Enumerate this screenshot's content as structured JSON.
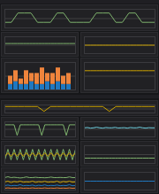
{
  "chart_data": [
    {
      "type": "line",
      "x": [
        0,
        1,
        2,
        3,
        4,
        5,
        6,
        7,
        8,
        9,
        10,
        11,
        12,
        13,
        14,
        15,
        16,
        17,
        18,
        19,
        20,
        21,
        22,
        23
      ],
      "xlim": [
        0,
        23
      ],
      "ylim": [
        0,
        1
      ],
      "yticks": [
        0,
        0.5,
        1
      ],
      "grid": true,
      "tick_labels": false,
      "series": [
        {
          "color": "#7eb26d",
          "values": [
            0.3,
            0.3,
            0.8,
            0.8,
            0.8,
            0.3,
            0.3,
            0.3,
            0.8,
            0.8,
            0.3,
            0.3,
            0.3,
            0.3,
            0.8,
            0.8,
            0.8,
            0.3,
            0.3,
            0.8,
            0.8,
            0.3,
            0.3,
            0.3
          ]
        }
      ]
    },
    {
      "type": "line",
      "x": [
        0,
        1,
        2,
        3,
        4,
        5,
        6,
        7,
        8,
        9,
        10,
        11,
        12,
        13,
        14,
        15,
        16,
        17,
        18,
        19,
        20,
        21,
        22,
        23
      ],
      "xlim": [
        0,
        23
      ],
      "ylim": [
        0,
        1
      ],
      "yticks": [
        0,
        0.5,
        1
      ],
      "grid": true,
      "tick_labels": false,
      "series": [
        {
          "color": "#7eb26d",
          "values": [
            0.6,
            0.6,
            0.6,
            0.6,
            0.6,
            0.6,
            0.6,
            0.6,
            0.6,
            0.6,
            0.6,
            0.6,
            0.6,
            0.6,
            0.6,
            0.6,
            0.6,
            0.6,
            0.6,
            0.6,
            0.6,
            0.6,
            0.6,
            0.6
          ]
        }
      ]
    },
    {
      "type": "line",
      "x": [
        0,
        1,
        2,
        3,
        4,
        5,
        6,
        7,
        8,
        9,
        10,
        11,
        12,
        13,
        14,
        15,
        16,
        17,
        18,
        19,
        20,
        21,
        22,
        23
      ],
      "xlim": [
        0,
        23
      ],
      "ylim": [
        0,
        1
      ],
      "yticks": [
        0,
        0.5,
        1
      ],
      "grid": true,
      "tick_labels": false,
      "series": [
        {
          "color": "#cca300",
          "values": [
            0.5,
            0.5,
            0.5,
            0.5,
            0.5,
            0.5,
            0.5,
            0.5,
            0.5,
            0.5,
            0.5,
            0.5,
            0.5,
            0.5,
            0.5,
            0.5,
            0.5,
            0.5,
            0.5,
            0.5,
            0.5,
            0.5,
            0.5,
            0.5
          ]
        }
      ]
    },
    {
      "type": "bar",
      "stacked": true,
      "categories": [
        null,
        null,
        null,
        null,
        null,
        null,
        null,
        null,
        null,
        null,
        null,
        null
      ],
      "ylim": [
        0,
        10
      ],
      "yticks": [
        0,
        5,
        10
      ],
      "grid": true,
      "tick_labels": false,
      "series": [
        {
          "color": "#1f78c1",
          "values": [
            2,
            3,
            2,
            2,
            3,
            2,
            2,
            3,
            2,
            3,
            2,
            2
          ]
        },
        {
          "color": "#ef843c",
          "values": [
            3,
            4,
            2,
            5,
            3,
            4,
            6,
            3,
            4,
            5,
            3,
            4
          ]
        }
      ]
    },
    {
      "type": "line",
      "x": [
        0,
        1,
        2,
        3,
        4,
        5,
        6,
        7,
        8,
        9,
        10,
        11,
        12,
        13,
        14,
        15,
        16,
        17,
        18,
        19,
        20,
        21,
        22,
        23
      ],
      "xlim": [
        0,
        23
      ],
      "ylim": [
        0,
        1
      ],
      "yticks": [
        0,
        0.5,
        1
      ],
      "grid": true,
      "tick_labels": false,
      "series": [
        {
          "color": "#cca300",
          "values": [
            0.7,
            0.7,
            0.7,
            0.7,
            0.7,
            0.7,
            0.7,
            0.7,
            0.7,
            0.7,
            0.7,
            0.7,
            0.7,
            0.7,
            0.7,
            0.7,
            0.7,
            0.7,
            0.7,
            0.7,
            0.7,
            0.7,
            0.7,
            0.7
          ]
        }
      ]
    },
    {
      "type": "line",
      "x": [
        0,
        1,
        2,
        3,
        4,
        5,
        6,
        7,
        8,
        9,
        10,
        11,
        12,
        13,
        14,
        15,
        16,
        17,
        18,
        19,
        20,
        21,
        22,
        23
      ],
      "xlim": [
        0,
        23
      ],
      "ylim": [
        0,
        1
      ],
      "yticks": [
        0,
        0.5,
        1
      ],
      "grid": true,
      "tick_labels": false,
      "series": [
        {
          "color": "#cca300",
          "values": [
            0.8,
            0.8,
            0.8,
            0.8,
            0.8,
            0.8,
            0.2,
            0.8,
            0.8,
            0.8,
            0.8,
            0.8,
            0.8,
            0.8,
            0.8,
            0.8,
            0.2,
            0.8,
            0.8,
            0.8,
            0.8,
            0.8,
            0.8,
            0.8
          ]
        }
      ]
    },
    {
      "type": "line",
      "x": [
        0,
        1,
        2,
        3,
        4,
        5,
        6,
        7,
        8,
        9,
        10,
        11,
        12,
        13,
        14,
        15,
        16,
        17,
        18,
        19,
        20,
        21,
        22,
        23
      ],
      "xlim": [
        0,
        23
      ],
      "ylim": [
        0,
        1
      ],
      "yticks": [
        0,
        0.5,
        1
      ],
      "grid": true,
      "tick_labels": false,
      "series": [
        {
          "color": "#7eb26d",
          "values": [
            0.8,
            0.8,
            0.8,
            0.8,
            0.1,
            0.8,
            0.8,
            0.8,
            0.8,
            0.8,
            0.8,
            0.8,
            0.1,
            0.8,
            0.8,
            0.8,
            0.8,
            0.8,
            0.8,
            0.8,
            0.1,
            0.8,
            0.8,
            0.8
          ]
        }
      ]
    },
    {
      "type": "line",
      "x": [
        0,
        1,
        2,
        3,
        4,
        5,
        6,
        7,
        8,
        9,
        10,
        11,
        12,
        13,
        14,
        15,
        16,
        17,
        18,
        19,
        20,
        21,
        22,
        23
      ],
      "xlim": [
        0,
        23
      ],
      "ylim": [
        0,
        1
      ],
      "yticks": [
        0,
        0.5,
        1
      ],
      "grid": true,
      "tick_labels": false,
      "series": [
        {
          "color": "#6ed0e0",
          "values": [
            0.6,
            0.62,
            0.58,
            0.6,
            0.64,
            0.6,
            0.58,
            0.62,
            0.6,
            0.6,
            0.63,
            0.59,
            0.6,
            0.61,
            0.58,
            0.62,
            0.6,
            0.6,
            0.64,
            0.6,
            0.58,
            0.61,
            0.6,
            0.6
          ]
        }
      ]
    },
    {
      "type": "line",
      "x": [
        0,
        1,
        2,
        3,
        4,
        5,
        6,
        7,
        8,
        9,
        10,
        11,
        12,
        13,
        14,
        15,
        16,
        17,
        18,
        19,
        20,
        21,
        22,
        23
      ],
      "xlim": [
        0,
        23
      ],
      "ylim": [
        0,
        1
      ],
      "yticks": [
        0,
        0.5,
        1
      ],
      "grid": true,
      "tick_labels": false,
      "series": [
        {
          "color": "#7eb26d",
          "values": [
            0.2,
            0.8,
            0.2,
            0.8,
            0.2,
            0.8,
            0.2,
            0.8,
            0.2,
            0.8,
            0.2,
            0.8,
            0.2,
            0.8,
            0.2,
            0.8,
            0.2,
            0.8,
            0.2,
            0.8,
            0.2,
            0.8,
            0.2,
            0.8
          ]
        },
        {
          "color": "#cca300",
          "values": [
            0.4,
            0.6,
            0.4,
            0.6,
            0.4,
            0.6,
            0.4,
            0.6,
            0.4,
            0.6,
            0.4,
            0.6,
            0.4,
            0.6,
            0.4,
            0.6,
            0.4,
            0.6,
            0.4,
            0.6,
            0.4,
            0.6,
            0.4,
            0.6
          ]
        }
      ]
    },
    {
      "type": "line",
      "x": [
        0,
        1,
        2,
        3,
        4,
        5,
        6,
        7,
        8,
        9,
        10,
        11,
        12,
        13,
        14,
        15,
        16,
        17,
        18,
        19,
        20,
        21,
        22,
        23
      ],
      "xlim": [
        0,
        23
      ],
      "ylim": [
        0,
        1
      ],
      "yticks": [
        0,
        0.5,
        1
      ],
      "grid": true,
      "tick_labels": false,
      "series": [
        {
          "color": "#7eb26d",
          "values": [
            0.3,
            0.3,
            0.3,
            0.3,
            0.3,
            0.3,
            0.3,
            0.3,
            0.3,
            0.3,
            0.3,
            0.3,
            0.3,
            0.3,
            0.3,
            0.3,
            0.3,
            0.3,
            0.3,
            0.3,
            0.3,
            0.3,
            0.3,
            0.3
          ]
        }
      ]
    },
    {
      "type": "line",
      "x": [
        0,
        1,
        2,
        3,
        4,
        5,
        6,
        7,
        8,
        9,
        10,
        11,
        12,
        13,
        14,
        15,
        16,
        17,
        18,
        19,
        20,
        21,
        22,
        23
      ],
      "xlim": [
        0,
        23
      ],
      "ylim": [
        0,
        1
      ],
      "yticks": [
        0,
        0.5,
        1
      ],
      "grid": true,
      "tick_labels": false,
      "series": [
        {
          "color": "#7eb26d",
          "values": [
            0.7,
            0.75,
            0.7,
            0.72,
            0.7,
            0.68,
            0.7,
            0.74,
            0.7,
            0.7,
            0.72,
            0.7,
            0.7,
            0.69,
            0.7,
            0.73,
            0.7,
            0.7,
            0.71,
            0.7,
            0.7,
            0.74,
            0.7,
            0.7
          ]
        },
        {
          "color": "#cca300",
          "values": [
            0.45,
            0.5,
            0.42,
            0.48,
            0.45,
            0.5,
            0.44,
            0.46,
            0.45,
            0.5,
            0.43,
            0.47,
            0.45,
            0.49,
            0.44,
            0.46,
            0.45,
            0.5,
            0.42,
            0.48,
            0.45,
            0.5,
            0.44,
            0.46
          ]
        },
        {
          "color": "#1f78c1",
          "values": [
            0.25,
            0.28,
            0.24,
            0.26,
            0.25,
            0.3,
            0.24,
            0.26,
            0.25,
            0.28,
            0.23,
            0.27,
            0.25,
            0.29,
            0.24,
            0.26,
            0.25,
            0.28,
            0.24,
            0.26,
            0.25,
            0.3,
            0.24,
            0.26
          ]
        },
        {
          "color": "#ef843c",
          "values": [
            0.1,
            0.12,
            0.1,
            0.11,
            0.1,
            0.12,
            0.1,
            0.11,
            0.1,
            0.12,
            0.1,
            0.11,
            0.1,
            0.12,
            0.1,
            0.11,
            0.1,
            0.12,
            0.1,
            0.11,
            0.1,
            0.12,
            0.1,
            0.11
          ]
        }
      ]
    },
    {
      "type": "line",
      "x": [
        0,
        1,
        2,
        3,
        4,
        5,
        6,
        7,
        8,
        9,
        10,
        11,
        12,
        13,
        14,
        15,
        16,
        17,
        18,
        19,
        20,
        21,
        22,
        23
      ],
      "xlim": [
        0,
        23
      ],
      "ylim": [
        0,
        1
      ],
      "yticks": [
        0,
        0.5,
        1
      ],
      "grid": true,
      "tick_labels": false,
      "series": [
        {
          "color": "#1f78c1",
          "values": [
            0.5,
            0.5,
            0.5,
            0.5,
            0.5,
            0.5,
            0.5,
            0.5,
            0.5,
            0.5,
            0.5,
            0.5,
            0.5,
            0.5,
            0.5,
            0.5,
            0.5,
            0.5,
            0.5,
            0.5,
            0.5,
            0.5,
            0.5,
            0.5
          ]
        }
      ]
    }
  ]
}
